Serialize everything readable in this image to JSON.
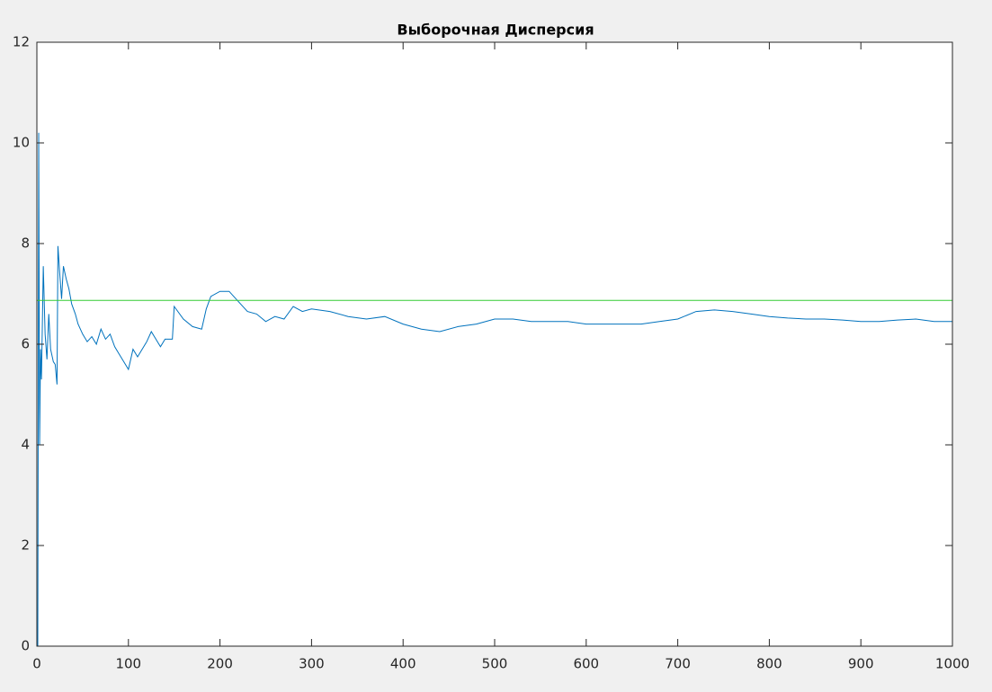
{
  "chart_data": {
    "type": "line",
    "title": "Выборочная Дисперсия",
    "xlim": [
      0,
      1000
    ],
    "xticks": [
      0,
      100,
      200,
      300,
      400,
      500,
      600,
      700,
      800,
      900,
      1000
    ],
    "ylim": [
      0,
      12
    ],
    "yticks": [
      0,
      2,
      4,
      6,
      8,
      10,
      12
    ],
    "series": [
      {
        "color": "#0072bd",
        "x": [
          1,
          2,
          3,
          4,
          5,
          7,
          9,
          11,
          13,
          15,
          18,
          20,
          22,
          23,
          25,
          27,
          29,
          32,
          35,
          38,
          42,
          45,
          50,
          55,
          60,
          65,
          70,
          75,
          80,
          85,
          90,
          95,
          100,
          105,
          110,
          115,
          120,
          125,
          130,
          135,
          140,
          148,
          150,
          160,
          170,
          180,
          185,
          190,
          200,
          210,
          220,
          230,
          240,
          250,
          260,
          270,
          280,
          290,
          300,
          320,
          340,
          360,
          380,
          400,
          420,
          440,
          460,
          480,
          500,
          520,
          540,
          560,
          580,
          600,
          620,
          640,
          660,
          680,
          700,
          720,
          740,
          760,
          780,
          800,
          820,
          840,
          860,
          880,
          900,
          920,
          940,
          960,
          980,
          1000
        ],
        "values": [
          0,
          10.2,
          4.0,
          5.9,
          5.3,
          7.55,
          6.2,
          5.7,
          6.6,
          5.9,
          5.65,
          5.6,
          5.2,
          7.95,
          7.4,
          6.9,
          7.55,
          7.3,
          7.1,
          6.8,
          6.6,
          6.4,
          6.2,
          6.05,
          6.15,
          6.0,
          6.3,
          6.1,
          6.2,
          5.95,
          5.8,
          5.65,
          5.5,
          5.9,
          5.75,
          5.9,
          6.05,
          6.25,
          6.1,
          5.95,
          6.1,
          6.1,
          6.75,
          6.5,
          6.35,
          6.3,
          6.7,
          6.95,
          7.05,
          7.05,
          6.85,
          6.65,
          6.6,
          6.45,
          6.55,
          6.5,
          6.75,
          6.65,
          6.7,
          6.65,
          6.55,
          6.5,
          6.55,
          6.4,
          6.3,
          6.25,
          6.35,
          6.4,
          6.5,
          6.5,
          6.45,
          6.45,
          6.45,
          6.4,
          6.4,
          6.4,
          6.4,
          6.45,
          6.5,
          6.65,
          6.68,
          6.65,
          6.6,
          6.55,
          6.52,
          6.5,
          6.5,
          6.48,
          6.45,
          6.45,
          6.48,
          6.5,
          6.45,
          6.45
        ]
      },
      {
        "color": "#33cc33",
        "x": [
          0,
          1000
        ],
        "values": [
          6.87,
          6.87
        ]
      }
    ]
  }
}
